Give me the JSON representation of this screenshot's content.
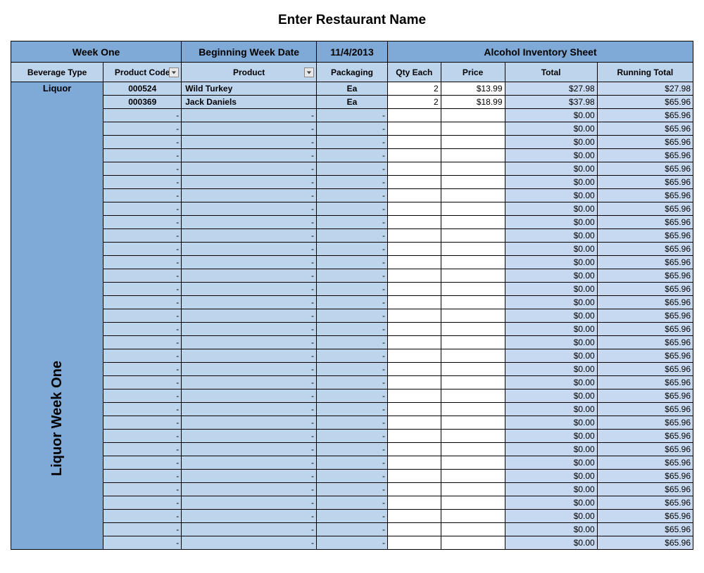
{
  "title": "Enter Restaurant Name",
  "header1": {
    "week": "Week One",
    "begin_date_label": "Beginning Week Date",
    "begin_date": "11/4/2013",
    "sheet_title": "Alcohol Inventory Sheet"
  },
  "header2": {
    "bev_type": "Beverage Type",
    "product_code": "Product Code",
    "product": "Product",
    "packaging": "Packaging",
    "qty": "Qty Each",
    "price": "Price",
    "total": "Total",
    "running_total": "Running Total"
  },
  "sidebar": {
    "category": "Liquor",
    "label": "Liquor Week One"
  },
  "rows": [
    {
      "code": "000524",
      "product": "Wild Turkey",
      "packaging": "Ea",
      "qty": "2",
      "price": "$13.99",
      "total": "$27.98",
      "running": "$27.98"
    },
    {
      "code": "000369",
      "product": "Jack Daniels",
      "packaging": "Ea",
      "qty": "2",
      "price": "$18.99",
      "total": "$37.98",
      "running": "$65.96"
    },
    {
      "code": "-",
      "product": "-",
      "packaging": "-",
      "qty": "",
      "price": "",
      "total": "$0.00",
      "running": "$65.96"
    },
    {
      "code": "-",
      "product": "-",
      "packaging": "-",
      "qty": "",
      "price": "",
      "total": "$0.00",
      "running": "$65.96"
    },
    {
      "code": "-",
      "product": "-",
      "packaging": "-",
      "qty": "",
      "price": "",
      "total": "$0.00",
      "running": "$65.96"
    },
    {
      "code": "-",
      "product": "-",
      "packaging": "-",
      "qty": "",
      "price": "",
      "total": "$0.00",
      "running": "$65.96"
    },
    {
      "code": "-",
      "product": "-",
      "packaging": "-",
      "qty": "",
      "price": "",
      "total": "$0.00",
      "running": "$65.96"
    },
    {
      "code": "-",
      "product": "-",
      "packaging": "-",
      "qty": "",
      "price": "",
      "total": "$0.00",
      "running": "$65.96"
    },
    {
      "code": "-",
      "product": "-",
      "packaging": "-",
      "qty": "",
      "price": "",
      "total": "$0.00",
      "running": "$65.96"
    },
    {
      "code": "-",
      "product": "-",
      "packaging": "-",
      "qty": "",
      "price": "",
      "total": "$0.00",
      "running": "$65.96"
    },
    {
      "code": "-",
      "product": "-",
      "packaging": "-",
      "qty": "",
      "price": "",
      "total": "$0.00",
      "running": "$65.96"
    },
    {
      "code": "-",
      "product": "-",
      "packaging": "-",
      "qty": "",
      "price": "",
      "total": "$0.00",
      "running": "$65.96"
    },
    {
      "code": "-",
      "product": "-",
      "packaging": "-",
      "qty": "",
      "price": "",
      "total": "$0.00",
      "running": "$65.96"
    },
    {
      "code": "-",
      "product": "-",
      "packaging": "-",
      "qty": "",
      "price": "",
      "total": "$0.00",
      "running": "$65.96"
    },
    {
      "code": "-",
      "product": "-",
      "packaging": "-",
      "qty": "",
      "price": "",
      "total": "$0.00",
      "running": "$65.96"
    },
    {
      "code": "-",
      "product": "-",
      "packaging": "-",
      "qty": "",
      "price": "",
      "total": "$0.00",
      "running": "$65.96"
    },
    {
      "code": "-",
      "product": "-",
      "packaging": "-",
      "qty": "",
      "price": "",
      "total": "$0.00",
      "running": "$65.96"
    },
    {
      "code": "-",
      "product": "-",
      "packaging": "-",
      "qty": "",
      "price": "",
      "total": "$0.00",
      "running": "$65.96"
    },
    {
      "code": "-",
      "product": "-",
      "packaging": "-",
      "qty": "",
      "price": "",
      "total": "$0.00",
      "running": "$65.96"
    },
    {
      "code": "-",
      "product": "-",
      "packaging": "-",
      "qty": "",
      "price": "",
      "total": "$0.00",
      "running": "$65.96"
    },
    {
      "code": "-",
      "product": "-",
      "packaging": "-",
      "qty": "",
      "price": "",
      "total": "$0.00",
      "running": "$65.96"
    },
    {
      "code": "-",
      "product": "-",
      "packaging": "-",
      "qty": "",
      "price": "",
      "total": "$0.00",
      "running": "$65.96"
    },
    {
      "code": "-",
      "product": "-",
      "packaging": "-",
      "qty": "",
      "price": "",
      "total": "$0.00",
      "running": "$65.96"
    },
    {
      "code": "-",
      "product": "-",
      "packaging": "-",
      "qty": "",
      "price": "",
      "total": "$0.00",
      "running": "$65.96"
    },
    {
      "code": "-",
      "product": "-",
      "packaging": "-",
      "qty": "",
      "price": "",
      "total": "$0.00",
      "running": "$65.96"
    },
    {
      "code": "-",
      "product": "-",
      "packaging": "-",
      "qty": "",
      "price": "",
      "total": "$0.00",
      "running": "$65.96"
    },
    {
      "code": "-",
      "product": "-",
      "packaging": "-",
      "qty": "",
      "price": "",
      "total": "$0.00",
      "running": "$65.96"
    },
    {
      "code": "-",
      "product": "-",
      "packaging": "-",
      "qty": "",
      "price": "",
      "total": "$0.00",
      "running": "$65.96"
    },
    {
      "code": "-",
      "product": "-",
      "packaging": "-",
      "qty": "",
      "price": "",
      "total": "$0.00",
      "running": "$65.96"
    },
    {
      "code": "-",
      "product": "-",
      "packaging": "-",
      "qty": "",
      "price": "",
      "total": "$0.00",
      "running": "$65.96"
    },
    {
      "code": "-",
      "product": "-",
      "packaging": "-",
      "qty": "",
      "price": "",
      "total": "$0.00",
      "running": "$65.96"
    },
    {
      "code": "-",
      "product": "-",
      "packaging": "-",
      "qty": "",
      "price": "",
      "total": "$0.00",
      "running": "$65.96"
    },
    {
      "code": "-",
      "product": "-",
      "packaging": "-",
      "qty": "",
      "price": "",
      "total": "$0.00",
      "running": "$65.96"
    },
    {
      "code": "-",
      "product": "-",
      "packaging": "-",
      "qty": "",
      "price": "",
      "total": "$0.00",
      "running": "$65.96"
    },
    {
      "code": "-",
      "product": "-",
      "packaging": "-",
      "qty": "",
      "price": "",
      "total": "$0.00",
      "running": "$65.96"
    }
  ],
  "colors": {
    "header_dark": "#7fa9d6",
    "header_light": "#bdd4ed",
    "cell_total": "#c7d9f0",
    "cell_white": "#ffffff",
    "border": "#000000"
  }
}
